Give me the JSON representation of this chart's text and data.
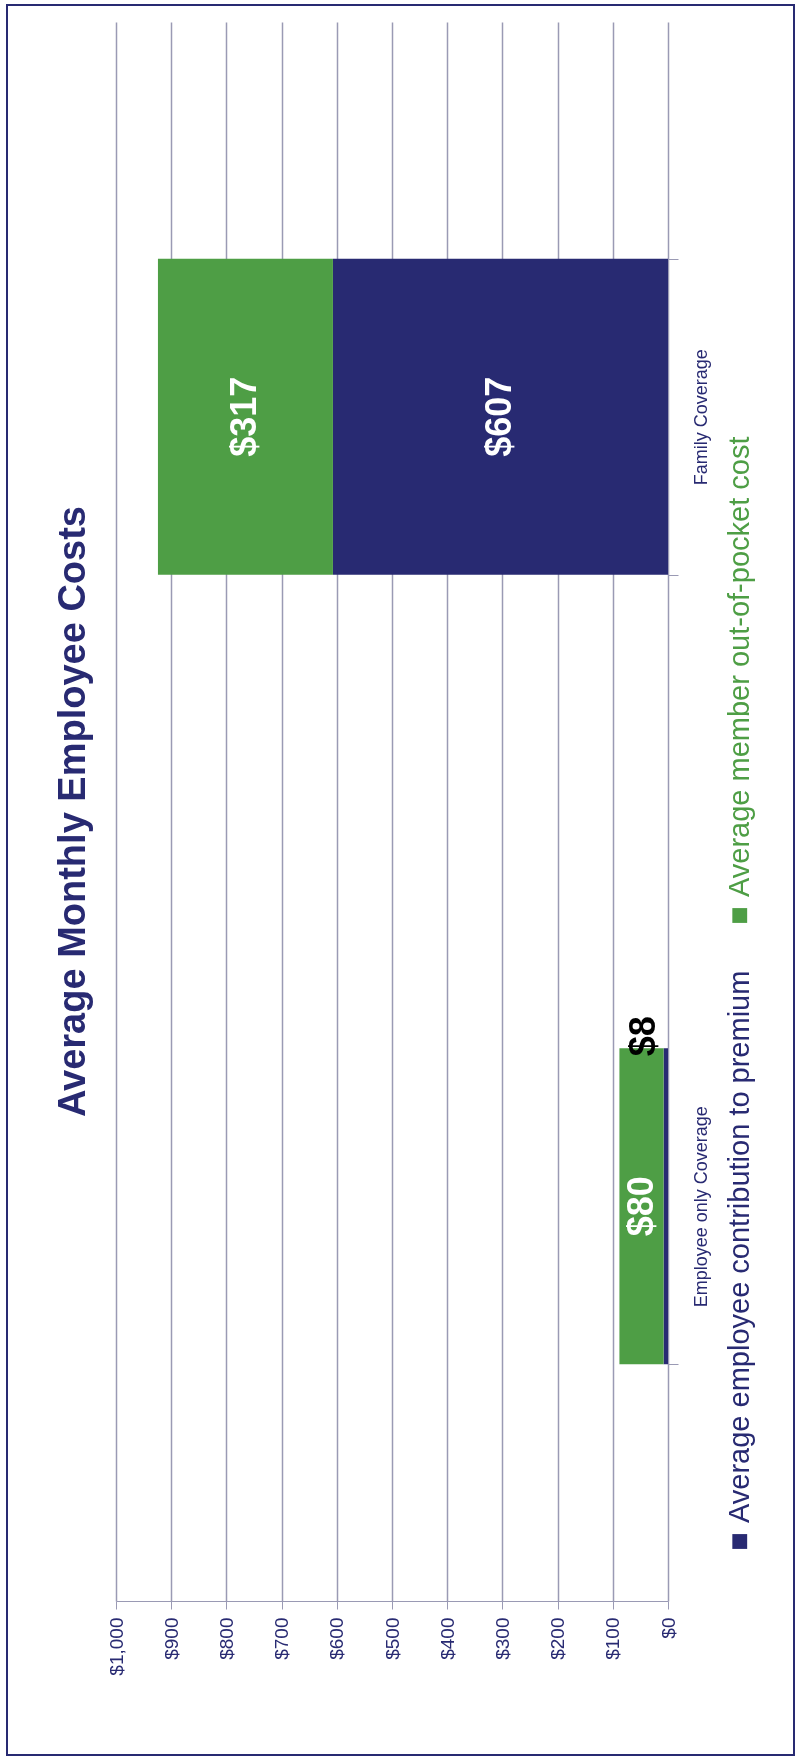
{
  "chart_data": {
    "type": "bar",
    "title": "Average Monthly Employee Costs",
    "orientation": "horizontal",
    "categories": [
      "Family Coverage",
      "Employee only Coverage"
    ],
    "stacked": true,
    "series": [
      {
        "name": "Average employee contribution to premium",
        "color": "#282a72",
        "values": [
          607,
          8
        ],
        "value_labels": [
          "$607",
          "$8"
        ]
      },
      {
        "name": "Average member out-of-pocket cost",
        "color": "#4e9e45",
        "values": [
          317,
          80
        ],
        "value_labels": [
          "$317",
          "$80"
        ]
      }
    ],
    "xlim": [
      1000,
      0
    ],
    "xticks": [
      {
        "value": 1000,
        "label": "$1,000"
      },
      {
        "value": 900,
        "label": "$900"
      },
      {
        "value": 800,
        "label": "$800"
      },
      {
        "value": 700,
        "label": "$700"
      },
      {
        "value": 600,
        "label": "$600"
      },
      {
        "value": 500,
        "label": "$500"
      },
      {
        "value": 400,
        "label": "$400"
      },
      {
        "value": 300,
        "label": "$300"
      },
      {
        "value": 200,
        "label": "$200"
      },
      {
        "value": 100,
        "label": "$100"
      },
      {
        "value": 0,
        "label": "$0"
      }
    ],
    "grid": true,
    "legend": "right"
  }
}
